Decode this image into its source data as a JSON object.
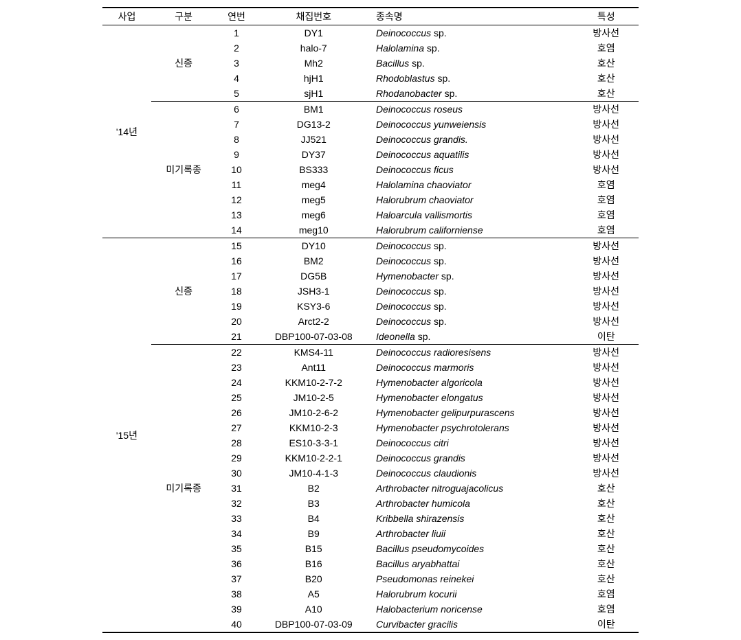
{
  "headers": {
    "project": "사업",
    "category": "구분",
    "seq": "연번",
    "collection": "채집번호",
    "species": "종속명",
    "trait": "특성"
  },
  "projects": [
    {
      "label": "'14년",
      "groups": [
        {
          "label": "신종",
          "rows": [
            {
              "seq": "1",
              "collection": "DY1",
              "genus": "Deinococcus",
              "epithet": "sp.",
              "trait": "방사선"
            },
            {
              "seq": "2",
              "collection": "halo-7",
              "genus": "Halolamina",
              "epithet": "sp.",
              "trait": "호염"
            },
            {
              "seq": "3",
              "collection": "Mh2",
              "genus": "Bacillus",
              "epithet": "sp.",
              "trait": "호산"
            },
            {
              "seq": "4",
              "collection": "hjH1",
              "genus": "Rhodoblastus",
              "epithet": "sp.",
              "trait": "호산"
            },
            {
              "seq": "5",
              "collection": "sjH1",
              "genus": "Rhodanobacter",
              "epithet": "sp.",
              "trait": "호산"
            }
          ]
        },
        {
          "label": "미기록종",
          "rows": [
            {
              "seq": "6",
              "collection": "BM1",
              "genus": "Deinococcus",
              "epithet": "roseus",
              "trait": "방사선"
            },
            {
              "seq": "7",
              "collection": "DG13-2",
              "genus": "Deinococcus",
              "epithet": "yunweiensis",
              "trait": "방사선"
            },
            {
              "seq": "8",
              "collection": "JJ521",
              "genus": "Deinococcus",
              "epithet": "grandis.",
              "trait": "방사선"
            },
            {
              "seq": "9",
              "collection": "DY37",
              "genus": "Deinococcus",
              "epithet": "aquatilis",
              "trait": "방사선"
            },
            {
              "seq": "10",
              "collection": "BS333",
              "genus": "Deinococcus",
              "epithet": "ficus",
              "trait": "방사선"
            },
            {
              "seq": "11",
              "collection": "meg4",
              "genus": "Halolamina",
              "epithet": "chaoviator",
              "trait": "호염"
            },
            {
              "seq": "12",
              "collection": "meg5",
              "genus": "Halorubrum",
              "epithet": "chaoviator",
              "trait": "호염"
            },
            {
              "seq": "13",
              "collection": "meg6",
              "genus": "Haloarcula",
              "epithet": "vallismortis",
              "trait": "호염"
            },
            {
              "seq": "14",
              "collection": "meg10",
              "genus": "Halorubrum",
              "epithet": "californiense",
              "trait": "호염"
            }
          ]
        }
      ]
    },
    {
      "label": "'15년",
      "groups": [
        {
          "label": "신종",
          "rows": [
            {
              "seq": "15",
              "collection": "DY10",
              "genus": "Deinococcus",
              "epithet": "sp.",
              "trait": "방사선"
            },
            {
              "seq": "16",
              "collection": "BM2",
              "genus": "Deinococcus",
              "epithet": "sp.",
              "trait": "방사선"
            },
            {
              "seq": "17",
              "collection": "DG5B",
              "genus": "Hymenobacter",
              "epithet": "sp.",
              "trait": "방사선"
            },
            {
              "seq": "18",
              "collection": "JSH3-1",
              "genus": "Deinococcus",
              "epithet": "sp.",
              "trait": "방사선"
            },
            {
              "seq": "19",
              "collection": "KSY3-6",
              "genus": "Deinococcus",
              "epithet": "sp.",
              "trait": "방사선"
            },
            {
              "seq": "20",
              "collection": "Arct2-2",
              "genus": "Deinococcus",
              "epithet": "sp.",
              "trait": "방사선"
            },
            {
              "seq": "21",
              "collection": "DBP100-07-03-08",
              "genus": "Ideonella",
              "epithet": "sp.",
              "trait": "이탄"
            }
          ]
        },
        {
          "label": "미기록종",
          "rows": [
            {
              "seq": "22",
              "collection": "KMS4-11",
              "genus": "Deinococcus",
              "epithet": "radioresisens",
              "trait": "방사선"
            },
            {
              "seq": "23",
              "collection": "Ant11",
              "genus": "Deinococcus",
              "epithet": "marmoris",
              "trait": "방사선"
            },
            {
              "seq": "24",
              "collection": "KKM10-2-7-2",
              "genus": "Hymenobacter",
              "epithet": "algoricola",
              "trait": "방사선"
            },
            {
              "seq": "25",
              "collection": "JM10-2-5",
              "genus": "Hymenobacter",
              "epithet": "elongatus",
              "trait": "방사선"
            },
            {
              "seq": "26",
              "collection": "JM10-2-6-2",
              "genus": "Hymenobacter",
              "epithet": "gelipurpurascens",
              "trait": "방사선"
            },
            {
              "seq": "27",
              "collection": "KKM10-2-3",
              "genus": "Hymenobacter",
              "epithet": "psychrotolerans",
              "trait": "방사선"
            },
            {
              "seq": "28",
              "collection": "ES10-3-3-1",
              "genus": "Deinococcus",
              "epithet": "citri",
              "trait": "방사선"
            },
            {
              "seq": "29",
              "collection": "KKM10-2-2-1",
              "genus": "Deinococcus",
              "epithet": "grandis",
              "trait": "방사선"
            },
            {
              "seq": "30",
              "collection": "JM10-4-1-3",
              "genus": "Deinococcus",
              "epithet": "claudionis",
              "trait": "방사선"
            },
            {
              "seq": "31",
              "collection": "B2",
              "genus": "Arthrobacter",
              "epithet": "nitroguajacolicus",
              "trait": "호산"
            },
            {
              "seq": "32",
              "collection": "B3",
              "genus": "Arthrobacter",
              "epithet": "humicola",
              "trait": "호산"
            },
            {
              "seq": "33",
              "collection": "B4",
              "genus": "Kribbella",
              "epithet": "shirazensis",
              "trait": "호산"
            },
            {
              "seq": "34",
              "collection": "B9",
              "genus": "Arthrobacter",
              "epithet": "liuii",
              "trait": "호산"
            },
            {
              "seq": "35",
              "collection": "B15",
              "genus": "Bacillus",
              "epithet": "pseudomycoides",
              "trait": "호산"
            },
            {
              "seq": "36",
              "collection": "B16",
              "genus": "Bacillus",
              "epithet": "aryabhattai",
              "trait": "호산"
            },
            {
              "seq": "37",
              "collection": "B20",
              "genus": "Pseudomonas",
              "epithet": "reinekei",
              "trait": "호산"
            },
            {
              "seq": "38",
              "collection": "A5",
              "genus": "Halorubrum",
              "epithet": "kocurii",
              "trait": "호염"
            },
            {
              "seq": "39",
              "collection": "A10",
              "genus": "Halobacterium",
              "epithet": "noricense",
              "trait": "호염"
            },
            {
              "seq": "40",
              "collection": "DBP100-07-03-09",
              "genus": "Curvibacter",
              "epithet": "gracilis",
              "trait": "이탄"
            }
          ]
        }
      ]
    }
  ]
}
